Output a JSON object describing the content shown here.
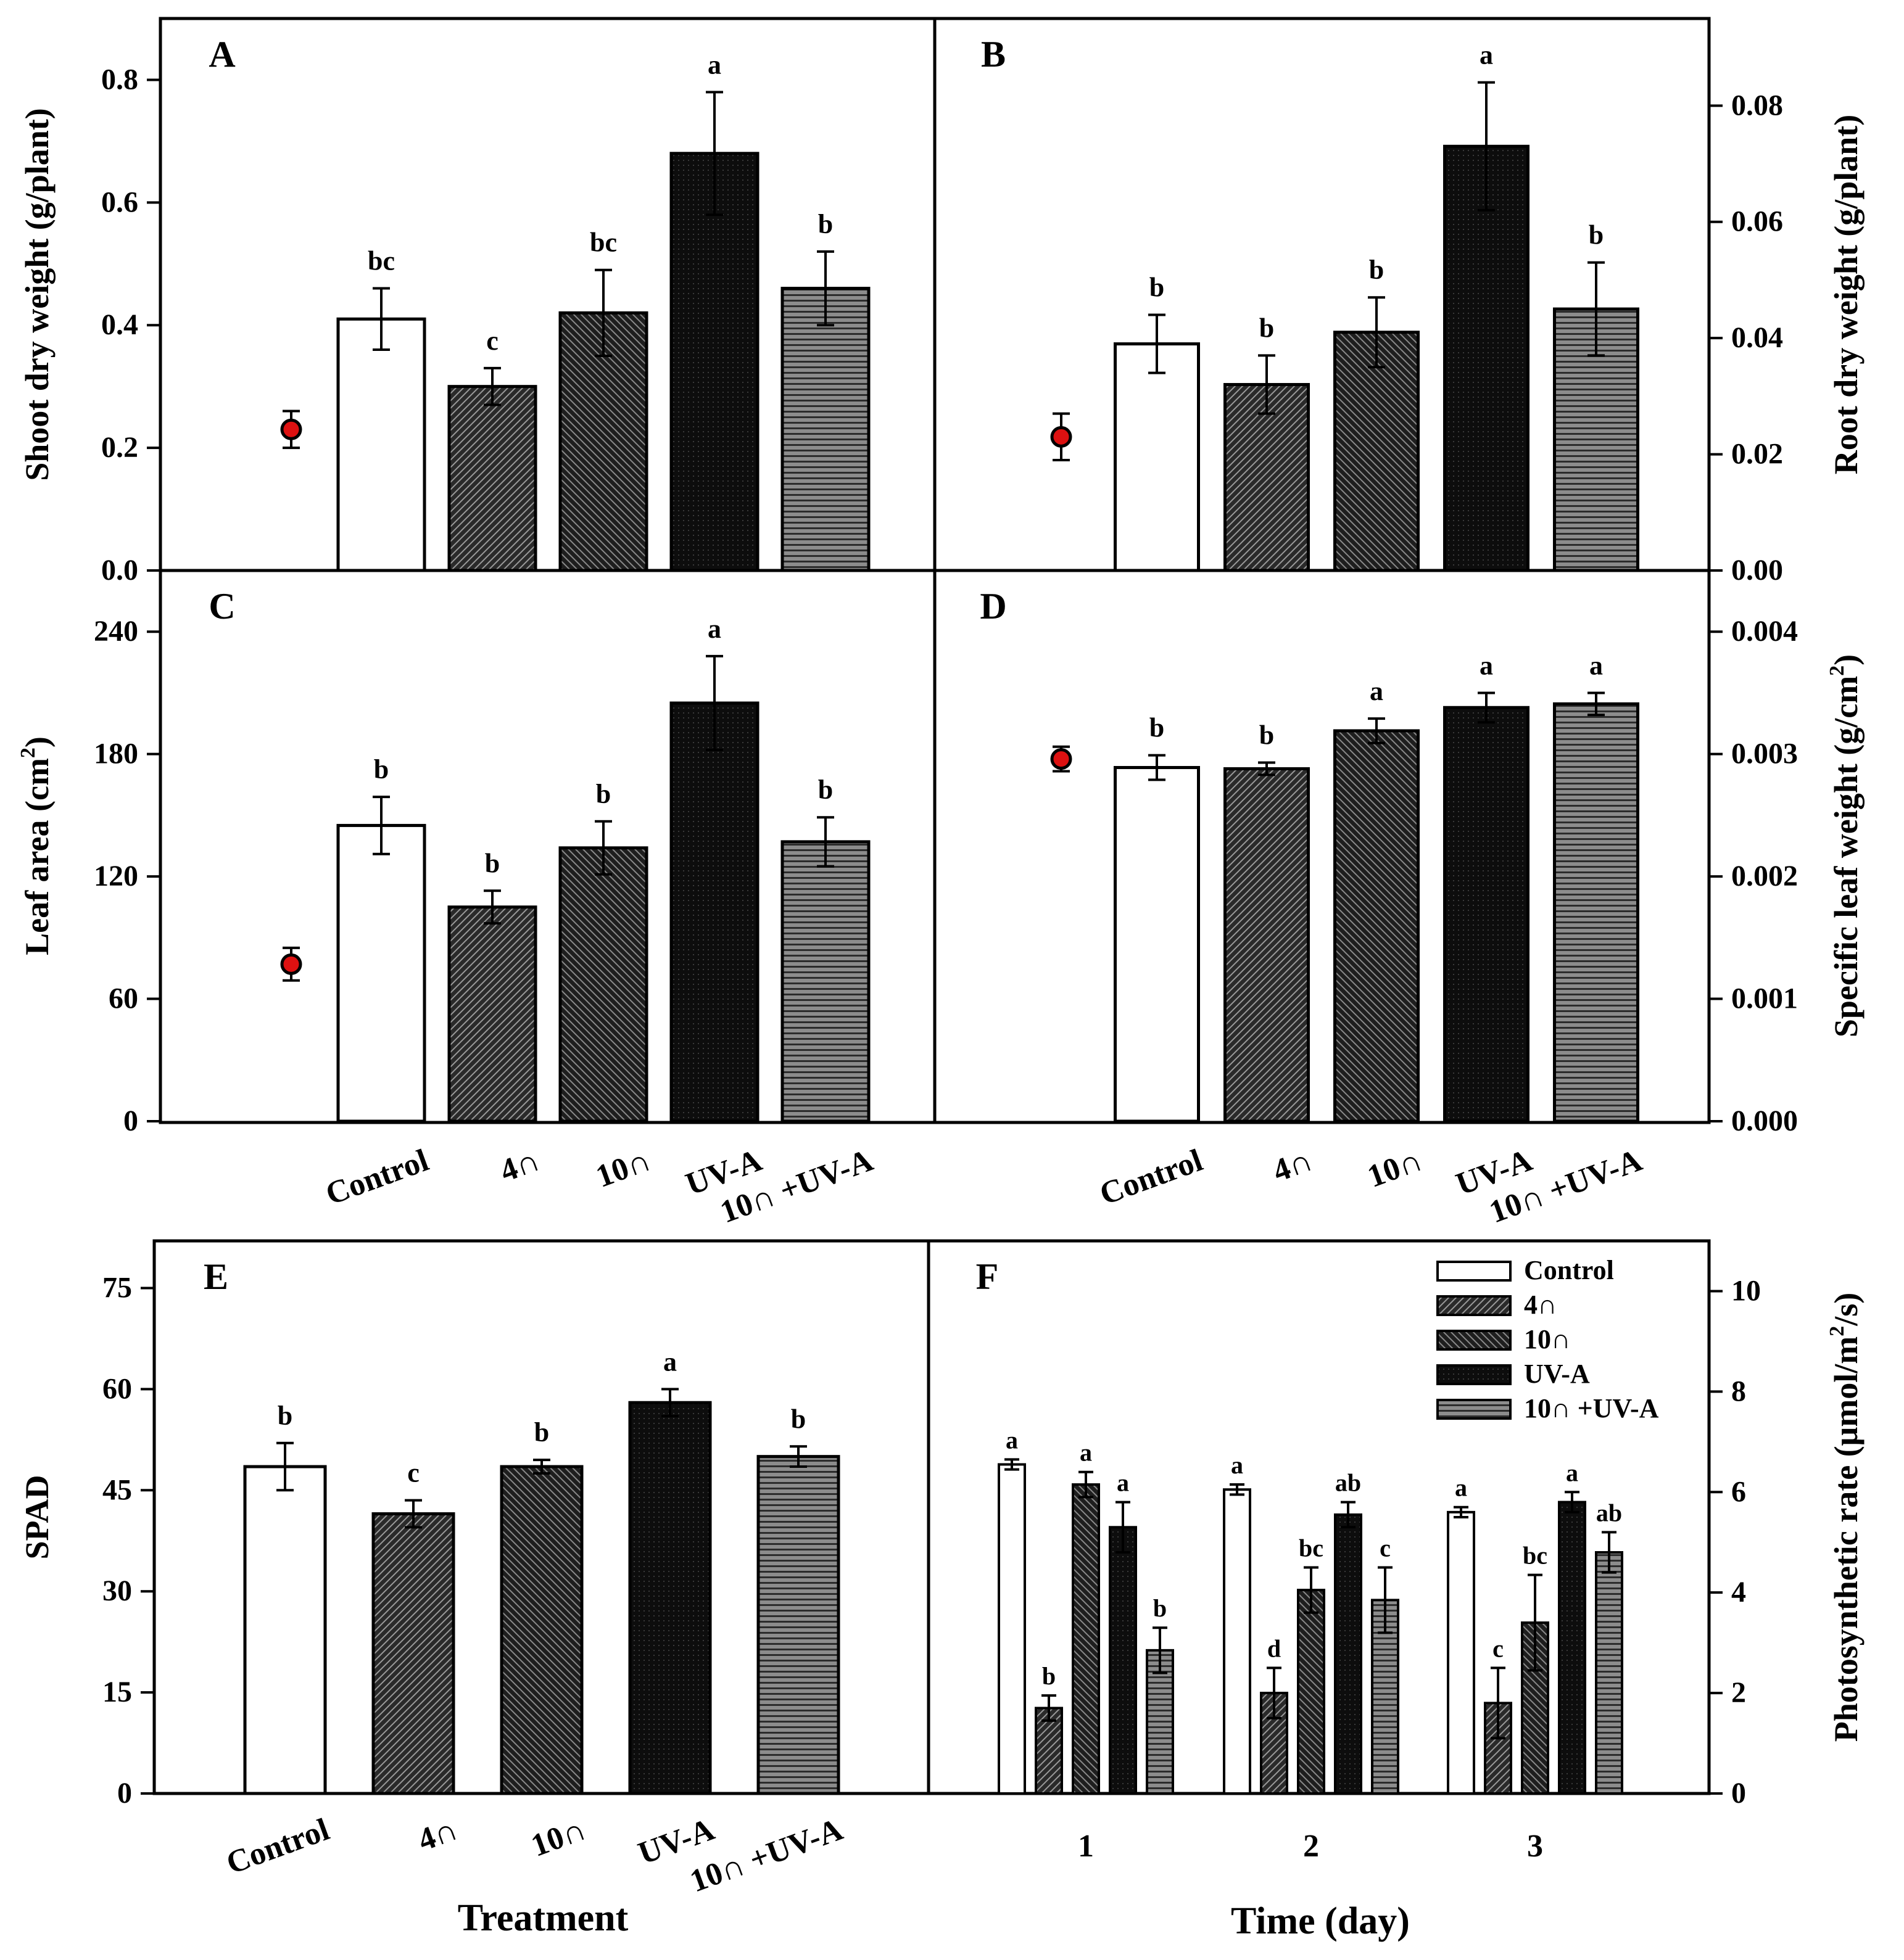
{
  "colors": {
    "axis": "#000000",
    "control_fill": "#ffffff",
    "dark_fill": "#222222",
    "uva_fill": "#0e0e0e",
    "stripe_fill": "#8a8a8a",
    "dot_fill": "#dd1111"
  },
  "chart_data": [
    {
      "panel": "A",
      "type": "bar",
      "ylabel": "Shoot dry weight (g/plant)",
      "ylim": [
        0,
        0.9
      ],
      "yticks": [
        "0.0",
        "0.2",
        "0.4",
        "0.6",
        "0.8"
      ],
      "categories": [
        "Control",
        "4∩",
        "10∩",
        "UV-A",
        "10∩ +UV-A"
      ],
      "values": [
        0.41,
        0.3,
        0.42,
        0.68,
        0.46
      ],
      "errors": [
        0.05,
        0.03,
        0.07,
        0.1,
        0.06
      ],
      "letters": [
        "bc",
        "c",
        "bc",
        "a",
        "b"
      ],
      "initial": {
        "value": 0.23,
        "error": 0.03
      }
    },
    {
      "panel": "B",
      "type": "bar",
      "ylabel": "Root dry weight (g/plant)",
      "ylim": [
        0,
        0.095
      ],
      "yticks": [
        "0.00",
        "0.02",
        "0.04",
        "0.06",
        "0.08"
      ],
      "categories": [
        "Control",
        "4∩",
        "10∩",
        "UV-A",
        "10∩ +UV-A"
      ],
      "values": [
        0.039,
        0.032,
        0.041,
        0.073,
        0.045
      ],
      "errors": [
        0.005,
        0.005,
        0.006,
        0.011,
        0.008
      ],
      "letters": [
        "b",
        "b",
        "b",
        "a",
        "b"
      ],
      "initial": {
        "value": 0.023,
        "error": 0.004
      }
    },
    {
      "panel": "C",
      "type": "bar",
      "ylabel": "Leaf area (cm2)",
      "ylim": [
        0,
        270
      ],
      "yticks": [
        "0",
        "60",
        "120",
        "180",
        "240"
      ],
      "categories": [
        "Control",
        "4∩",
        "10∩",
        "UV-A",
        "10∩ +UV-A"
      ],
      "values": [
        145,
        105,
        134,
        205,
        137
      ],
      "errors": [
        14,
        8,
        13,
        23,
        12
      ],
      "letters": [
        "b",
        "b",
        "b",
        "a",
        "b"
      ],
      "initial": {
        "value": 77,
        "error": 8
      }
    },
    {
      "panel": "D",
      "type": "bar",
      "ylabel": "Specific leaf weight (g/cm2)",
      "ylim": [
        0,
        0.0045
      ],
      "yticks": [
        "0.000",
        "0.001",
        "0.002",
        "0.003",
        "0.004"
      ],
      "categories": [
        "Control",
        "4∩",
        "10∩",
        "UV-A",
        "10∩ +UV-A"
      ],
      "values": [
        0.00289,
        0.00288,
        0.00319,
        0.00338,
        0.00341
      ],
      "errors": [
        0.0001,
        5e-05,
        0.0001,
        0.00012,
        9e-05
      ],
      "letters": [
        "b",
        "b",
        "a",
        "a",
        "a"
      ],
      "initial": {
        "value": 0.00296,
        "error": 0.0001
      }
    },
    {
      "panel": "E",
      "type": "bar",
      "ylabel": "SPAD",
      "xlabel": "Treatment",
      "ylim": [
        0,
        82
      ],
      "yticks": [
        "0",
        "15",
        "30",
        "45",
        "60",
        "75"
      ],
      "categories": [
        "Control",
        "4∩",
        "10∩",
        "UV-A",
        "10∩ +UV-A"
      ],
      "values": [
        48.5,
        41.5,
        48.5,
        58,
        50
      ],
      "errors": [
        3.5,
        2,
        1,
        2,
        1.5
      ],
      "letters": [
        "b",
        "c",
        "b",
        "a",
        "b"
      ]
    },
    {
      "panel": "F",
      "type": "bar",
      "ylabel": "Photosynthetic rate (μmol/m2/s)",
      "xlabel": "Time (day)",
      "ylim": [
        0,
        11
      ],
      "yticks": [
        "0",
        "2",
        "4",
        "6",
        "8",
        "10"
      ],
      "categories": [
        "1",
        "2",
        "3"
      ],
      "legend_position": "top-right",
      "series": [
        {
          "name": "Control",
          "values": [
            6.55,
            6.05,
            5.6
          ],
          "errors": [
            0.1,
            0.1,
            0.1
          ],
          "letters": [
            "a",
            "a",
            "a"
          ]
        },
        {
          "name": "4∩",
          "values": [
            1.7,
            2.0,
            1.8
          ],
          "errors": [
            0.25,
            0.5,
            0.7
          ],
          "letters": [
            "b",
            "d",
            "c"
          ]
        },
        {
          "name": "10∩",
          "values": [
            6.15,
            4.05,
            3.4
          ],
          "errors": [
            0.25,
            0.45,
            0.95
          ],
          "letters": [
            "a",
            "bc",
            "bc"
          ]
        },
        {
          "name": "UV-A",
          "values": [
            5.3,
            5.55,
            5.8
          ],
          "errors": [
            0.5,
            0.25,
            0.2
          ],
          "letters": [
            "a",
            "ab",
            "a"
          ]
        },
        {
          "name": "10∩ +UV-A",
          "values": [
            2.85,
            3.85,
            4.8
          ],
          "errors": [
            0.45,
            0.65,
            0.4
          ],
          "letters": [
            "b",
            "c",
            "ab"
          ]
        }
      ]
    }
  ]
}
